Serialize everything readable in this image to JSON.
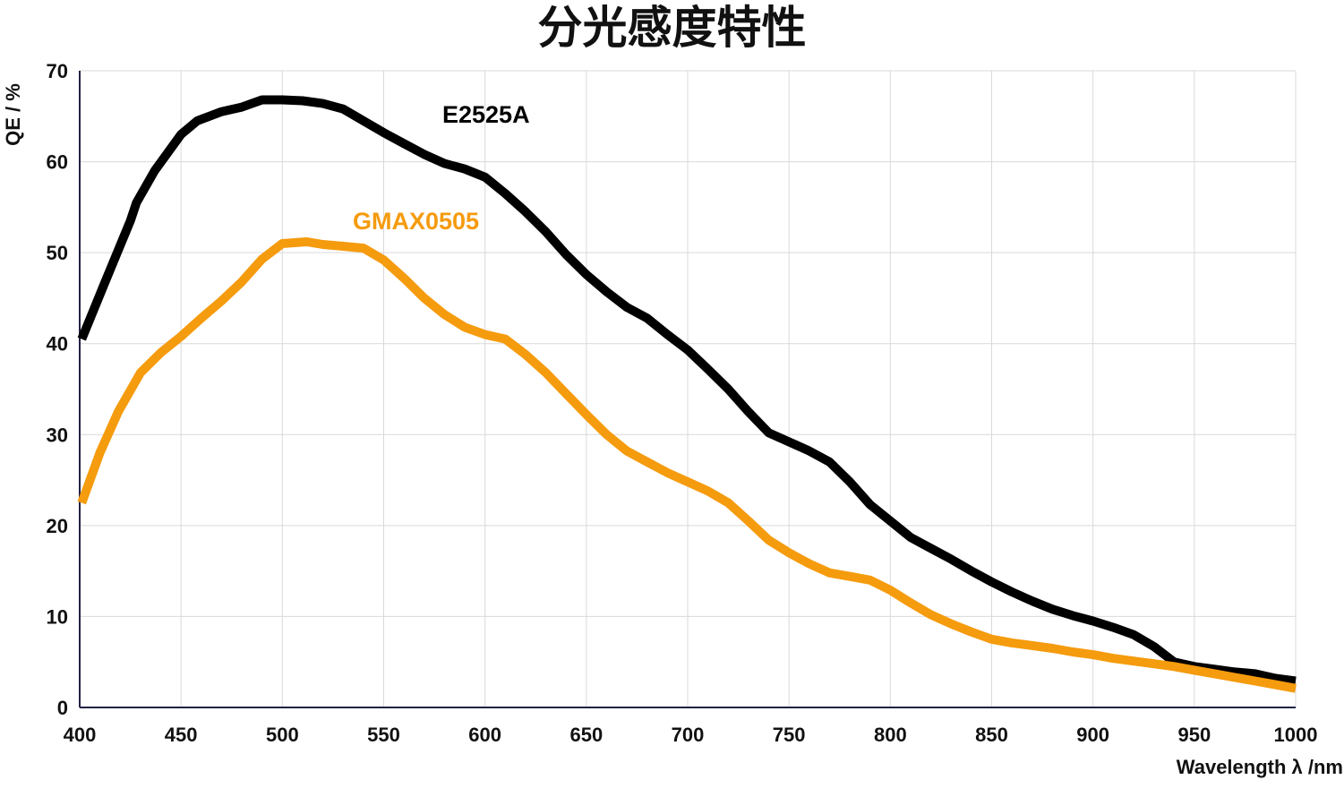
{
  "chart_data": {
    "type": "line",
    "title": "分光感度特性",
    "xlabel": "Wavelength λ /nm",
    "ylabel": "QE / %",
    "xlim": [
      400,
      1000
    ],
    "ylim": [
      0,
      70
    ],
    "x_ticks": [
      400,
      450,
      500,
      550,
      600,
      650,
      700,
      750,
      800,
      850,
      900,
      950,
      1000
    ],
    "y_ticks": [
      0,
      10,
      20,
      30,
      40,
      50,
      60,
      70
    ],
    "grid": true,
    "legend": "inline labels",
    "series": [
      {
        "name": "E2525A",
        "color": "#000000",
        "x": [
          401,
          412,
          425,
          428,
          437,
          450,
          458,
          470,
          480,
          490,
          500,
          510,
          520,
          530,
          540,
          550,
          560,
          570,
          580,
          590,
          600,
          610,
          620,
          630,
          640,
          650,
          660,
          670,
          680,
          690,
          700,
          710,
          720,
          730,
          740,
          750,
          760,
          770,
          780,
          790,
          800,
          810,
          820,
          830,
          840,
          850,
          860,
          870,
          880,
          890,
          900,
          910,
          920,
          930,
          940,
          950,
          960,
          970,
          980,
          990,
          1000
        ],
        "values": [
          40.5,
          46.5,
          53.5,
          55.5,
          59.0,
          63.0,
          64.5,
          65.5,
          66.0,
          66.8,
          66.8,
          66.7,
          66.4,
          65.8,
          64.5,
          63.2,
          62.0,
          60.8,
          59.8,
          59.2,
          58.3,
          56.5,
          54.5,
          52.3,
          49.8,
          47.6,
          45.7,
          44.0,
          42.8,
          41.0,
          39.3,
          37.2,
          35.0,
          32.5,
          30.2,
          29.2,
          28.2,
          27.0,
          24.8,
          22.3,
          20.5,
          18.7,
          17.5,
          16.3,
          15.0,
          13.8,
          12.7,
          11.7,
          10.8,
          10.1,
          9.5,
          8.8,
          8.0,
          6.7,
          5.0,
          4.5,
          4.2,
          3.9,
          3.7,
          3.2,
          2.9
        ]
      },
      {
        "name": "GMAX0505",
        "color": "#F59B0E",
        "x": [
          401,
          410,
          419,
          430,
          440,
          450,
          460,
          470,
          480,
          490,
          500,
          512,
          520,
          530,
          540,
          550,
          560,
          570,
          580,
          590,
          600,
          610,
          620,
          630,
          640,
          650,
          660,
          670,
          680,
          690,
          700,
          710,
          720,
          730,
          740,
          750,
          760,
          770,
          780,
          790,
          800,
          810,
          820,
          830,
          840,
          850,
          860,
          870,
          880,
          890,
          900,
          910,
          920,
          930,
          940,
          950,
          960,
          970,
          980,
          990,
          1000
        ],
        "values": [
          22.5,
          28.0,
          32.5,
          36.8,
          39.0,
          40.8,
          42.8,
          44.7,
          46.8,
          49.3,
          51.0,
          51.2,
          50.9,
          50.7,
          50.5,
          49.2,
          47.2,
          45.0,
          43.2,
          41.8,
          41.0,
          40.5,
          38.8,
          36.8,
          34.5,
          32.2,
          30.0,
          28.2,
          27.0,
          25.8,
          24.8,
          23.8,
          22.5,
          20.5,
          18.4,
          17.0,
          15.8,
          14.8,
          14.4,
          14.0,
          12.9,
          11.5,
          10.2,
          9.2,
          8.3,
          7.5,
          7.1,
          6.8,
          6.5,
          6.1,
          5.8,
          5.4,
          5.1,
          4.8,
          4.5,
          4.1,
          3.7,
          3.3,
          2.9,
          2.5,
          2.1
        ]
      }
    ]
  }
}
